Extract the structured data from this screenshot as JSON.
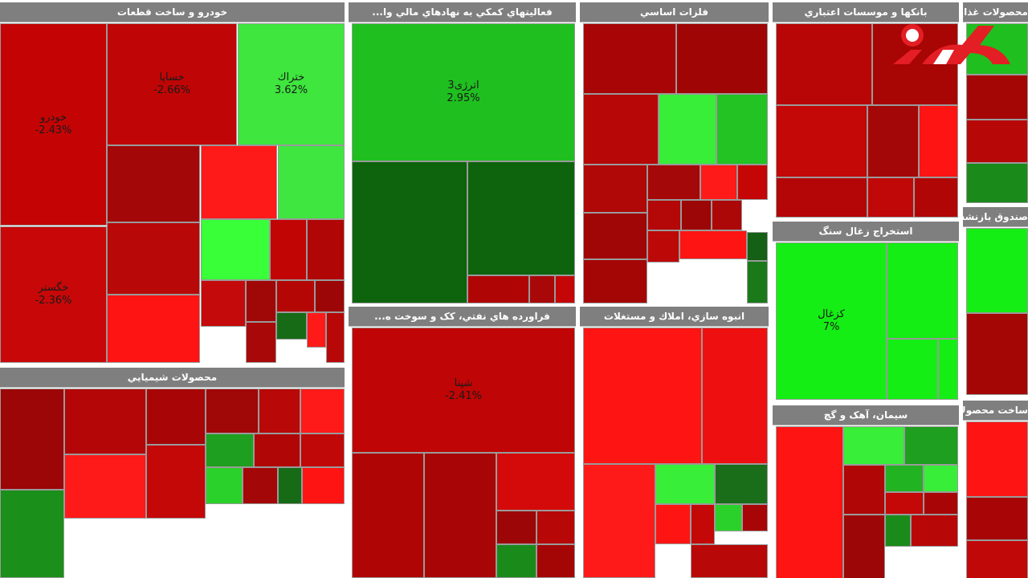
{
  "chart_data": {
    "type": "treemap",
    "sectors": [
      {
        "id": "auto",
        "name": "خودرو و ساخت قطعات",
        "cells": [
          {
            "symbol": "خودرو",
            "change": "-2.43%",
            "color": "#c40404"
          },
          {
            "symbol": "خساپا",
            "change": "-2.66%",
            "color": "#bf0505"
          },
          {
            "symbol": "ختراك",
            "change": "3.62%",
            "color": "#3ee63e"
          },
          {
            "symbol": "خگستر",
            "change": "-2.36%",
            "color": "#c80808"
          },
          {
            "symbol": "",
            "change": "",
            "color": "#a40707"
          },
          {
            "symbol": "",
            "change": "",
            "color": "#ff1a1a"
          },
          {
            "symbol": "",
            "change": "",
            "color": "#40e640"
          },
          {
            "symbol": "",
            "change": "",
            "color": "#b80808"
          },
          {
            "symbol": "",
            "change": "",
            "color": "#38ff38"
          },
          {
            "symbol": "",
            "change": "",
            "color": "#c10505"
          },
          {
            "symbol": "",
            "change": "",
            "color": "#b00606"
          },
          {
            "symbol": "",
            "change": "",
            "color": "#ff1414"
          },
          {
            "symbol": "",
            "change": "",
            "color": "#c40a0a"
          },
          {
            "symbol": "",
            "change": "",
            "color": "#a00808"
          },
          {
            "symbol": "",
            "change": "",
            "color": "#b50606"
          },
          {
            "symbol": "",
            "change": "",
            "color": "#9c0606"
          },
          {
            "symbol": "",
            "change": "",
            "color": "#176b17"
          },
          {
            "symbol": "",
            "change": "",
            "color": "#ff1a1a"
          },
          {
            "symbol": "",
            "change": "",
            "color": "#a80808"
          },
          {
            "symbol": "",
            "change": "",
            "color": "#b80707"
          }
        ]
      },
      {
        "id": "fin",
        "name": "فعاليتهاي كمكي به نهادهاي مالي وا...",
        "cells": [
          {
            "symbol": "اترژی3",
            "change": "2.95%",
            "color": "#1fbf1f"
          },
          {
            "symbol": "",
            "change": "",
            "color": "#0d640d"
          },
          {
            "symbol": "",
            "change": "",
            "color": "#0d640d"
          },
          {
            "symbol": "",
            "change": "",
            "color": "#b00505"
          },
          {
            "symbol": "",
            "change": "",
            "color": "#a80808"
          },
          {
            "symbol": "",
            "change": "",
            "color": "#c40606"
          }
        ]
      },
      {
        "id": "metal",
        "name": "فلزات اساسي",
        "cells": [
          {
            "symbol": "",
            "change": "",
            "color": "#a80606"
          },
          {
            "symbol": "",
            "change": "",
            "color": "#a00505"
          },
          {
            "symbol": "",
            "change": "",
            "color": "#b80707"
          },
          {
            "symbol": "",
            "change": "",
            "color": "#38ee38"
          },
          {
            "symbol": "",
            "change": "",
            "color": "#22c322"
          },
          {
            "symbol": "",
            "change": "",
            "color": "#b00707"
          },
          {
            "symbol": "",
            "change": "",
            "color": "#a40808"
          },
          {
            "symbol": "",
            "change": "",
            "color": "#ff1a1a"
          },
          {
            "symbol": "",
            "change": "",
            "color": "#c40606"
          },
          {
            "symbol": "",
            "change": "",
            "color": "#a00606"
          },
          {
            "symbol": "",
            "change": "",
            "color": "#b40707"
          },
          {
            "symbol": "",
            "change": "",
            "color": "#9c0606"
          },
          {
            "symbol": "",
            "change": "",
            "color": "#ac0808"
          },
          {
            "symbol": "",
            "change": "",
            "color": "#146014"
          },
          {
            "symbol": "",
            "change": "",
            "color": "#a40606"
          },
          {
            "symbol": "",
            "change": "",
            "color": "#bd0808"
          },
          {
            "symbol": "",
            "change": "",
            "color": "#ff1414"
          },
          {
            "symbol": "",
            "change": "",
            "color": "#1a7a1a"
          }
        ]
      },
      {
        "id": "bank",
        "name": "بانكها و موسسات اعتباري",
        "cells": [
          {
            "symbol": "",
            "change": "",
            "color": "#b80606"
          },
          {
            "symbol": "",
            "change": "",
            "color": "#a80505"
          },
          {
            "symbol": "",
            "change": "",
            "color": "#c40707"
          },
          {
            "symbol": "",
            "change": "",
            "color": "#a40707"
          },
          {
            "symbol": "",
            "change": "",
            "color": "#ff1414"
          },
          {
            "symbol": "",
            "change": "",
            "color": "#b40606"
          },
          {
            "symbol": "",
            "change": "",
            "color": "#c00808"
          },
          {
            "symbol": "",
            "change": "",
            "color": "#b00606"
          }
        ]
      },
      {
        "id": "food",
        "name": "محصولات غذايي و آشا",
        "cells": [
          {
            "symbol": "",
            "change": "",
            "color": "#1fbf1f"
          },
          {
            "symbol": "",
            "change": "",
            "color": "#a40606"
          },
          {
            "symbol": "",
            "change": "",
            "color": "#b80707"
          },
          {
            "symbol": "",
            "change": "",
            "color": "#1a8a1a"
          }
        ]
      },
      {
        "id": "chem",
        "name": "محصولات شيميايي",
        "cells": [
          {
            "symbol": "",
            "change": "",
            "color": "#9c0606"
          },
          {
            "symbol": "",
            "change": "",
            "color": "#b40606"
          },
          {
            "symbol": "",
            "change": "",
            "color": "#ff1a1a"
          },
          {
            "symbol": "",
            "change": "",
            "color": "#1a8f1a"
          },
          {
            "symbol": "",
            "change": "",
            "color": "#a80606"
          },
          {
            "symbol": "",
            "change": "",
            "color": "#c40707"
          },
          {
            "symbol": "",
            "change": "",
            "color": "#a00707"
          },
          {
            "symbol": "",
            "change": "",
            "color": "#b80808"
          },
          {
            "symbol": "",
            "change": "",
            "color": "#ff1a1a"
          },
          {
            "symbol": "",
            "change": "",
            "color": "#1f9f1f"
          },
          {
            "symbol": "",
            "change": "",
            "color": "#b00606"
          },
          {
            "symbol": "",
            "change": "",
            "color": "#c00808"
          },
          {
            "symbol": "",
            "change": "",
            "color": "#2bd12b"
          },
          {
            "symbol": "",
            "change": "",
            "color": "#a40707"
          },
          {
            "symbol": "",
            "change": "",
            "color": "#176b17"
          },
          {
            "symbol": "",
            "change": "",
            "color": "#ff1414"
          }
        ]
      },
      {
        "id": "oil",
        "name": "فراورده هاي نفتي، كک و سوخت ه...",
        "cells": [
          {
            "symbol": "شپنا",
            "change": "-2.41%",
            "color": "#bf0505"
          },
          {
            "symbol": "",
            "change": "",
            "color": "#b00505"
          },
          {
            "symbol": "",
            "change": "",
            "color": "#a80606"
          },
          {
            "symbol": "",
            "change": "",
            "color": "#d40a0a"
          },
          {
            "symbol": "",
            "change": "",
            "color": "#9c0606"
          },
          {
            "symbol": "",
            "change": "",
            "color": "#b80707"
          },
          {
            "symbol": "",
            "change": "",
            "color": "#1a8a1a"
          },
          {
            "symbol": "",
            "change": "",
            "color": "#a40606"
          }
        ]
      },
      {
        "id": "estate",
        "name": "انبوه سازي، املاك و مستغلات",
        "cells": [
          {
            "symbol": "",
            "change": "",
            "color": "#ff1414"
          },
          {
            "symbol": "",
            "change": "",
            "color": "#ee1010"
          },
          {
            "symbol": "",
            "change": "",
            "color": "#ff1a1a"
          },
          {
            "symbol": "",
            "change": "",
            "color": "#38ee38"
          },
          {
            "symbol": "",
            "change": "",
            "color": "#1a6e1a"
          },
          {
            "symbol": "",
            "change": "",
            "color": "#ff1414"
          },
          {
            "symbol": "",
            "change": "",
            "color": "#c40707"
          },
          {
            "symbol": "",
            "change": "",
            "color": "#2bd12b"
          },
          {
            "symbol": "",
            "change": "",
            "color": "#a80606"
          },
          {
            "symbol": "",
            "change": "",
            "color": "#b80808"
          }
        ]
      },
      {
        "id": "coal",
        "name": "استخراج زغال سنگ",
        "cells": [
          {
            "symbol": "کزغال",
            "change": "7%",
            "color": "#14ee14"
          },
          {
            "symbol": "",
            "change": "",
            "color": "#14ee14"
          },
          {
            "symbol": "",
            "change": "",
            "color": "#14ee14"
          },
          {
            "symbol": "",
            "change": "",
            "color": "#14ee14"
          }
        ]
      },
      {
        "id": "fund",
        "name": "صندوق بازنشس",
        "cells": [
          {
            "symbol": "",
            "change": "",
            "color": "#14ee14"
          },
          {
            "symbol": "",
            "change": "",
            "color": "#a40606"
          }
        ]
      },
      {
        "id": "cement",
        "name": "سيمان، آهک و گچ",
        "cells": [
          {
            "symbol": "",
            "change": "",
            "color": "#ff1414"
          },
          {
            "symbol": "",
            "change": "",
            "color": "#38ee38"
          },
          {
            "symbol": "",
            "change": "",
            "color": "#1f9f1f"
          },
          {
            "symbol": "",
            "change": "",
            "color": "#b00606"
          },
          {
            "symbol": "",
            "change": "",
            "color": "#22b322"
          },
          {
            "symbol": "",
            "change": "",
            "color": "#38ee38"
          },
          {
            "symbol": "",
            "change": "",
            "color": "#c40707"
          },
          {
            "symbol": "",
            "change": "",
            "color": "#a80606"
          },
          {
            "symbol": "",
            "change": "",
            "color": "#1a8a1a"
          },
          {
            "symbol": "",
            "change": "",
            "color": "#b80707"
          },
          {
            "symbol": "",
            "change": "",
            "color": "#9c0606"
          }
        ]
      },
      {
        "id": "metalprod",
        "name": "ساخت محصولات فلزی",
        "cells": [
          {
            "symbol": "",
            "change": "",
            "color": "#ff1414"
          },
          {
            "symbol": "",
            "change": "",
            "color": "#a80606"
          },
          {
            "symbol": "",
            "change": "",
            "color": "#c00808"
          }
        ]
      }
    ]
  },
  "logo": {
    "text": "ركنا",
    "color": "#e31e24"
  }
}
